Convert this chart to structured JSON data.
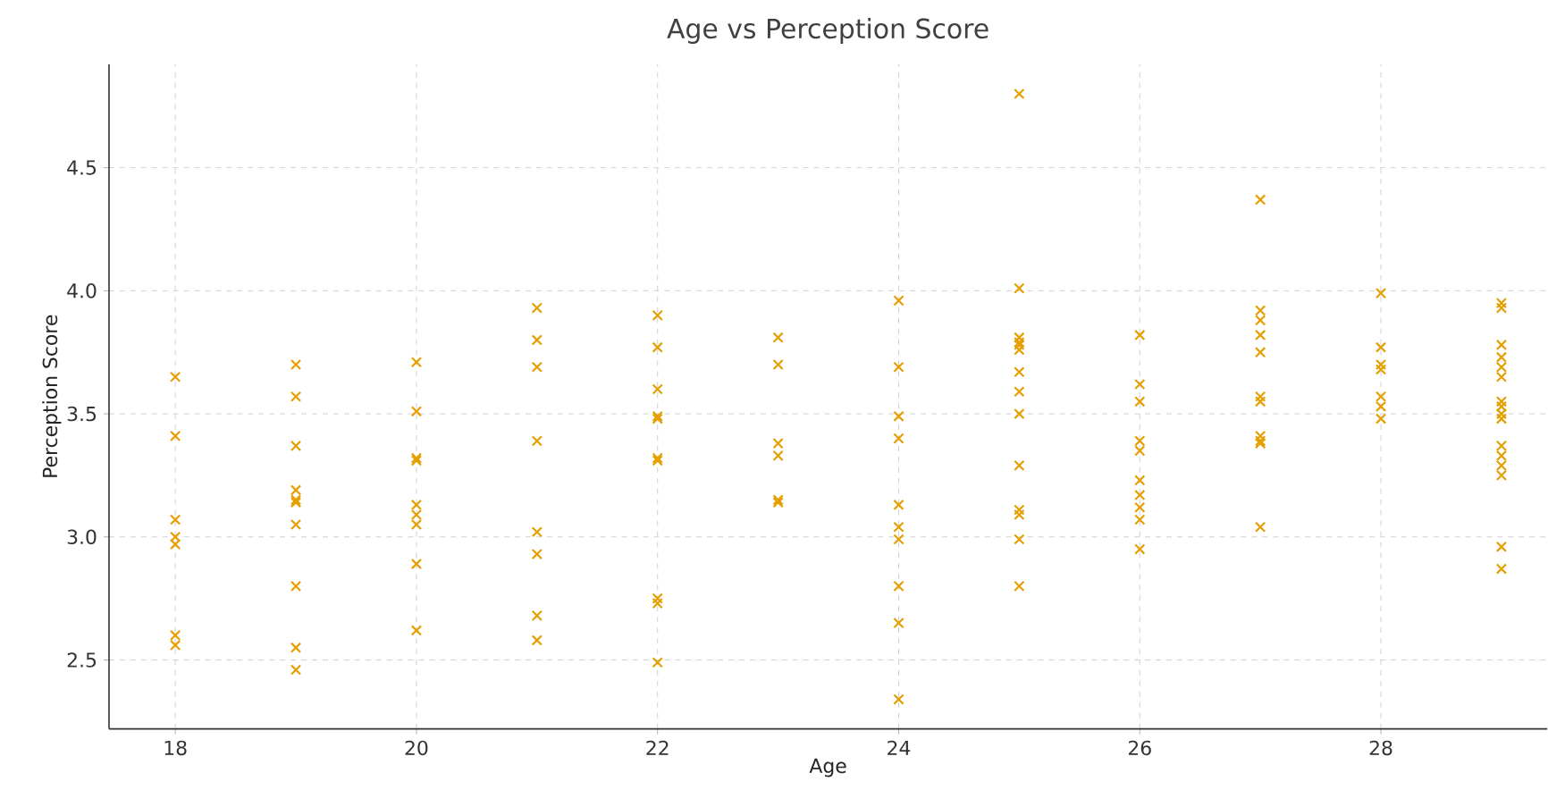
{
  "chart_data": {
    "type": "scatter",
    "title": "Age vs Perception Score",
    "xlabel": "Age",
    "ylabel": "Perception Score",
    "x": [
      18,
      18,
      18,
      18,
      18,
      18,
      18,
      19,
      19,
      19,
      19,
      19,
      19,
      19,
      19,
      19,
      19,
      20,
      20,
      20,
      20,
      20,
      20,
      20,
      20,
      20,
      21,
      21,
      21,
      21,
      21,
      21,
      21,
      21,
      22,
      22,
      22,
      22,
      22,
      22,
      22,
      22,
      22,
      22,
      23,
      23,
      23,
      23,
      23,
      23,
      24,
      24,
      24,
      24,
      24,
      24,
      24,
      24,
      24,
      24,
      25,
      25,
      25,
      25,
      25,
      25,
      25,
      25,
      25,
      25,
      25,
      25,
      25,
      25,
      26,
      26,
      26,
      26,
      26,
      26,
      26,
      26,
      26,
      26,
      27,
      27,
      27,
      27,
      27,
      27,
      27,
      27,
      27,
      27,
      27,
      28,
      28,
      28,
      28,
      28,
      28,
      28,
      29,
      29,
      29,
      29,
      29,
      29,
      29,
      29,
      29,
      29,
      29,
      29,
      29,
      29,
      29,
      29
    ],
    "values": [
      3.65,
      3.41,
      3.07,
      3.0,
      2.97,
      2.6,
      2.56,
      3.7,
      3.57,
      3.37,
      3.19,
      3.15,
      3.14,
      3.05,
      2.8,
      2.55,
      2.46,
      3.71,
      3.51,
      3.32,
      3.31,
      3.13,
      3.09,
      3.05,
      2.89,
      2.62,
      3.93,
      3.8,
      3.69,
      3.39,
      3.02,
      2.93,
      2.68,
      2.58,
      3.9,
      3.77,
      3.6,
      3.49,
      3.48,
      3.32,
      3.31,
      2.75,
      2.73,
      2.49,
      3.81,
      3.7,
      3.38,
      3.33,
      3.15,
      3.14,
      3.96,
      3.69,
      3.49,
      3.4,
      3.13,
      3.04,
      2.99,
      2.8,
      2.65,
      2.34,
      4.8,
      4.01,
      3.81,
      3.79,
      3.78,
      3.76,
      3.67,
      3.59,
      3.5,
      3.29,
      3.11,
      3.09,
      2.99,
      2.8,
      3.82,
      3.62,
      3.55,
      3.39,
      3.35,
      3.23,
      3.17,
      3.12,
      3.07,
      2.95,
      4.37,
      3.92,
      3.88,
      3.82,
      3.75,
      3.57,
      3.55,
      3.41,
      3.39,
      3.38,
      3.04,
      3.99,
      3.77,
      3.7,
      3.68,
      3.57,
      3.53,
      3.48,
      3.95,
      3.93,
      3.78,
      3.73,
      3.69,
      3.65,
      3.55,
      3.53,
      3.5,
      3.48,
      3.37,
      3.33,
      3.29,
      3.25,
      2.96,
      2.87
    ],
    "color": "#e69f00",
    "marker": "cross",
    "grid": true,
    "xlim": [
      17.45,
      29.38
    ],
    "ylim": [
      2.22,
      4.92
    ],
    "xticks": [
      18,
      20,
      22,
      24,
      26,
      28
    ],
    "yticks": [
      2.5,
      {
        "value": 3.0,
        "label": "3.0"
      },
      3.5,
      {
        "value": 4.0,
        "label": "4.0"
      },
      4.5
    ]
  }
}
